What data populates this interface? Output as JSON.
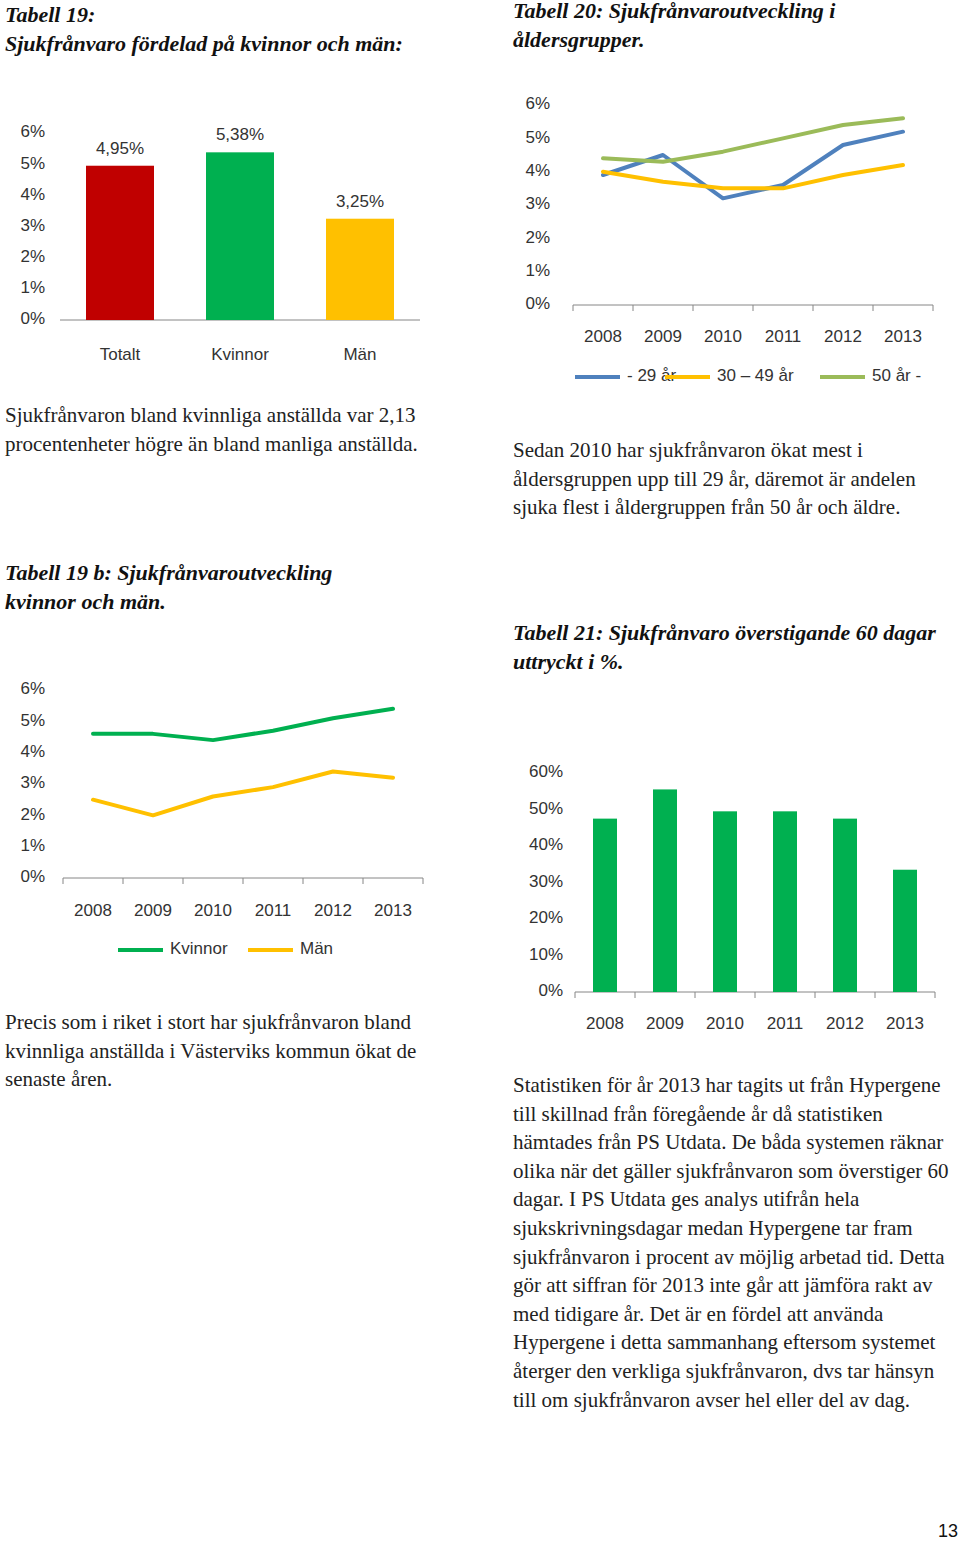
{
  "page": {
    "paragraphs": [
      "Sjukfrånvaron bland kvinnliga anställda var 2,13 procentenheter högre än bland manliga anställda.",
      "Precis som i riket i stort har sjukfrånvaron bland kvinnliga anställda i Västerviks kommun ökat de senaste åren.",
      "Sedan 2010 har sjukfrånvaron ökat mest i åldersgruppen upp till 29 år, däremot är andelen sjuka flest i åldergruppen från 50 år och äldre.",
      "Statistiken för år 2013 har tagits ut från Hypergene till skillnad från föregående år då statistiken hämtades från PS Utdata. De båda systemen räknar olika när det gäller sjukfrånvaron som överstiger 60 dagar. I PS Utdata ges analys utifrån hela sjukskrivningsdagar medan Hypergene tar fram sjukfrånvaron i procent av möjlig arbetad tid. Detta gör att siffran för 2013 inte går att jämföra rakt av med tidigare år. Det är en fördel att använda Hypergene i detta sammanhang eftersom systemet återger den verkliga sjukfrånvaron, dvs tar hänsyn till om sjukfrånvaron avser hel eller del av dag."
    ],
    "page_number": "13"
  },
  "chart_data": [
    {
      "type": "bar",
      "title": "Tabell 19:",
      "subtitle": "Sjukfrånvaro fördelad på kvinnor och män:",
      "categories": [
        "Totalt",
        "Kvinnor",
        "Män"
      ],
      "values": [
        4.95,
        5.38,
        3.25
      ],
      "value_labels": [
        "4,95%",
        "5,38%",
        "3,25%"
      ],
      "colors": [
        "#C00000",
        "#00B050",
        "#FFC000"
      ],
      "data_labels": true,
      "ylim": [
        0,
        6
      ],
      "yticks": [
        {
          "value": 0,
          "label": "0%"
        },
        {
          "value": 1,
          "label": "1%"
        },
        {
          "value": 2,
          "label": "2%"
        },
        {
          "value": 3,
          "label": "3%"
        },
        {
          "value": 4,
          "label": "4%"
        },
        {
          "value": 5,
          "label": "5%"
        },
        {
          "value": 6,
          "label": "6%"
        }
      ],
      "grid": false
    },
    {
      "type": "line",
      "title": "Tabell 19 b: Sjukfrånvaroutveckling kvinnor och män.",
      "categories": [
        "2008",
        "2009",
        "2010",
        "2011",
        "2012",
        "2013"
      ],
      "series": [
        {
          "name": "Kvinnor",
          "color": "#00B050",
          "values": [
            4.6,
            4.6,
            4.4,
            4.7,
            5.1,
            5.4
          ]
        },
        {
          "name": "Män",
          "color": "#FFC000",
          "values": [
            2.5,
            2.0,
            2.6,
            2.9,
            3.4,
            3.2
          ]
        }
      ],
      "ylim": [
        0,
        6
      ],
      "yticks": [
        {
          "value": 0,
          "label": "0%"
        },
        {
          "value": 1,
          "label": "1%"
        },
        {
          "value": 2,
          "label": "2%"
        },
        {
          "value": 3,
          "label": "3%"
        },
        {
          "value": 4,
          "label": "4%"
        },
        {
          "value": 5,
          "label": "5%"
        },
        {
          "value": 6,
          "label": "6%"
        }
      ],
      "legend": "bottom",
      "grid": false
    },
    {
      "type": "line",
      "title": "Tabell 20: Sjukfrånvaroutveckling i åldersgrupper.",
      "categories": [
        "2008",
        "2009",
        "2010",
        "2011",
        "2012",
        "2013"
      ],
      "series": [
        {
          "name": "- 29 år",
          "color": "#4F81BD",
          "values": [
            3.9,
            4.5,
            3.2,
            3.6,
            4.8,
            5.2
          ]
        },
        {
          "name": "30 – 49 år",
          "color": "#FFC000",
          "values": [
            4.0,
            3.7,
            3.5,
            3.5,
            3.9,
            4.2
          ]
        },
        {
          "name": "50 år -",
          "color": "#9BBB59",
          "values": [
            4.4,
            4.3,
            4.6,
            5.0,
            5.4,
            5.6
          ]
        }
      ],
      "ylim": [
        0,
        6
      ],
      "yticks": [
        {
          "value": 0,
          "label": "0%"
        },
        {
          "value": 1,
          "label": "1%"
        },
        {
          "value": 2,
          "label": "2%"
        },
        {
          "value": 3,
          "label": "3%"
        },
        {
          "value": 4,
          "label": "4%"
        },
        {
          "value": 5,
          "label": "5%"
        },
        {
          "value": 6,
          "label": "6%"
        }
      ],
      "legend": "bottom",
      "grid": false
    },
    {
      "type": "bar",
      "title": "Tabell 21: Sjukfrånvaro överstigande 60 dagar uttryckt i %.",
      "categories": [
        "2008",
        "2009",
        "2010",
        "2011",
        "2012",
        "2013"
      ],
      "values": [
        47.5,
        55.5,
        49.5,
        49.5,
        47.5,
        33.5
      ],
      "color": "#00B050",
      "ylim": [
        0,
        60
      ],
      "yticks": [
        {
          "value": 0,
          "label": "0%"
        },
        {
          "value": 10,
          "label": "10%"
        },
        {
          "value": 20,
          "label": "20%"
        },
        {
          "value": 30,
          "label": "30%"
        },
        {
          "value": 40,
          "label": "40%"
        },
        {
          "value": 50,
          "label": "50%"
        },
        {
          "value": 60,
          "label": "60%"
        }
      ],
      "grid": false
    }
  ]
}
